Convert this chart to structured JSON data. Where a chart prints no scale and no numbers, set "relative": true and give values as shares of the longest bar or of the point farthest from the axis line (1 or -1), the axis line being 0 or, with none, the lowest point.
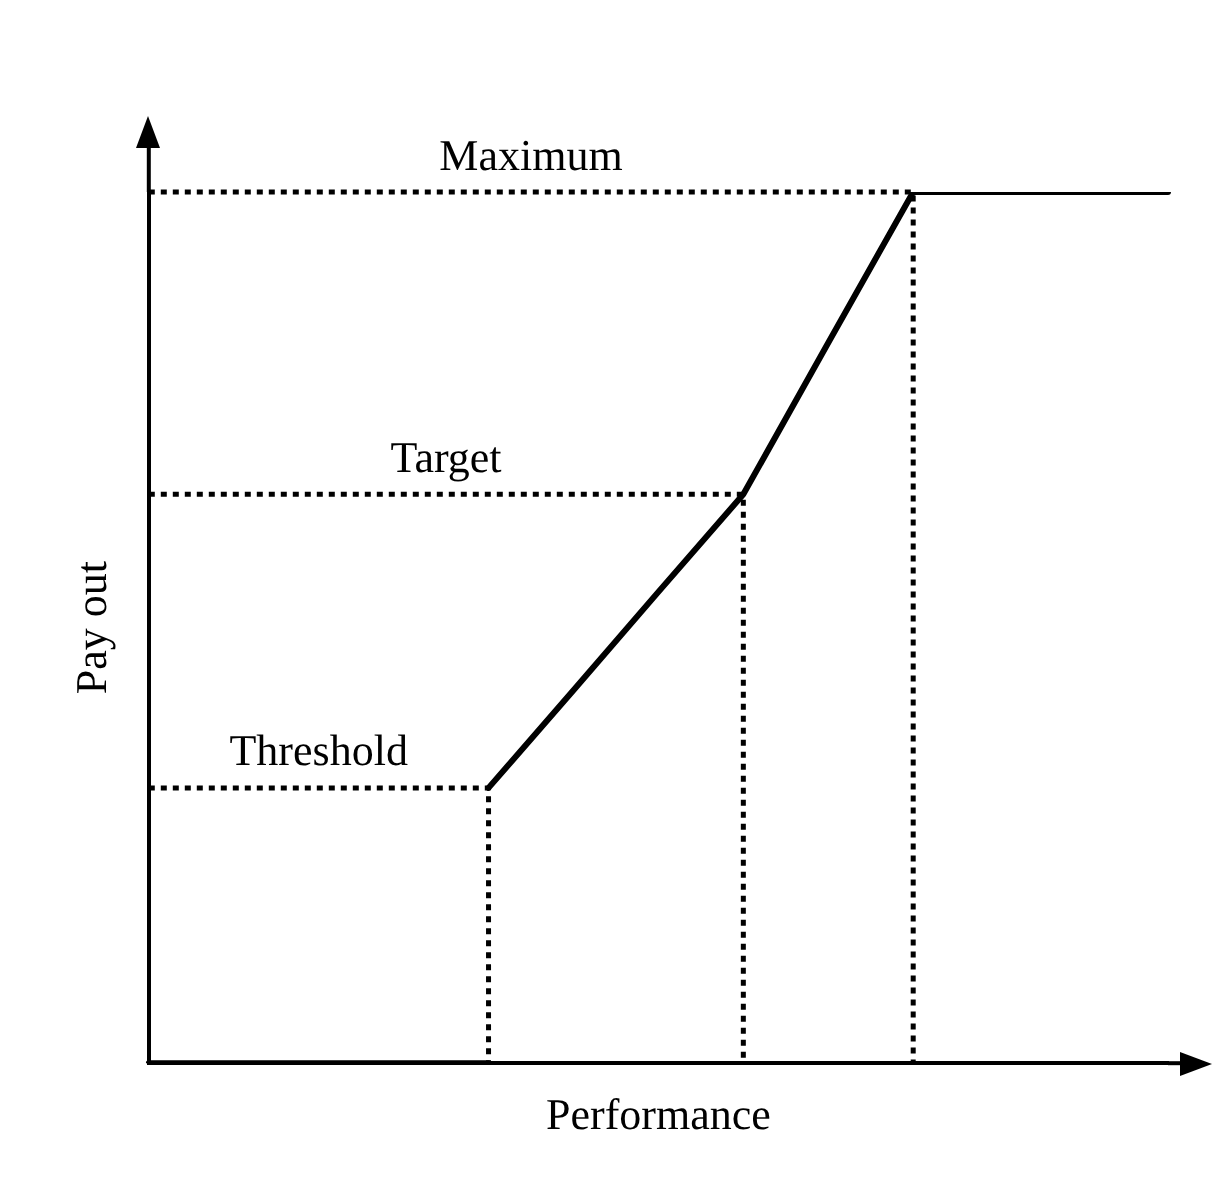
{
  "chart_data": {
    "type": "line",
    "relative": true,
    "xlabel": "Performance",
    "ylabel": "Pay out",
    "legend": false,
    "grid": false,
    "marker": "none",
    "line_style": "solid",
    "categories": [
      null,
      null,
      null,
      null,
      null,
      null,
      null,
      null,
      null,
      null,
      null,
      null,
      null
    ],
    "series": [
      {
        "color": "#000000",
        "values": [
          0,
          0,
          0,
          0,
          0,
          null,
          null,
          null,
          null,
          null,
          null,
          null,
          null
        ]
      },
      {
        "color": "#000000",
        "values": [
          null,
          null,
          null,
          null,
          0.316,
          0.428,
          0.541,
          0.653,
          0.827,
          1,
          1,
          1,
          1
        ]
      }
    ],
    "ref_lines": [
      {
        "axis": "y",
        "value": 0.316,
        "label": "Threshold",
        "color": "#000000",
        "line_style": "dotted"
      },
      {
        "axis": "y",
        "value": 0.653,
        "label": "Target",
        "color": "#000000",
        "line_style": "dotted"
      },
      {
        "axis": "y",
        "value": 1,
        "label": "Maximum",
        "color": "#000000",
        "line_style": "dotted"
      }
    ]
  }
}
